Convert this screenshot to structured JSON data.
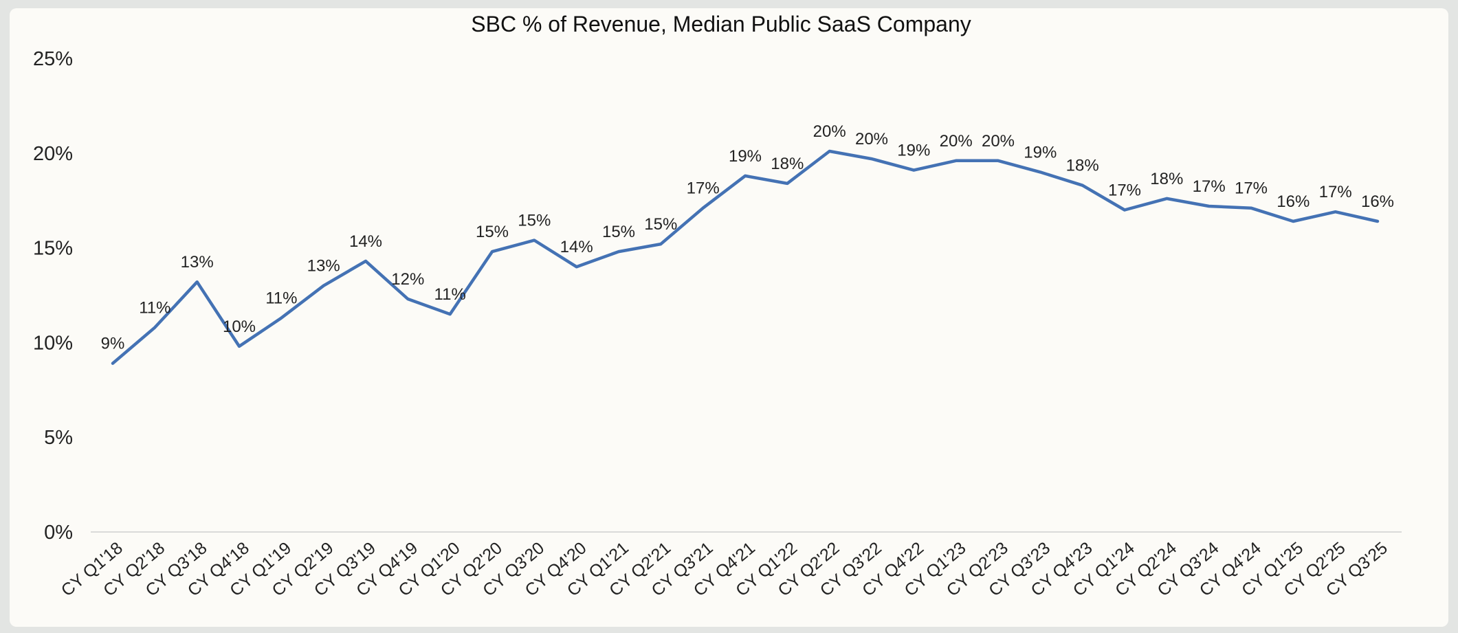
{
  "chart_data": {
    "type": "line",
    "title": "SBC % of Revenue, Median Public SaaS Company",
    "xlabel": "",
    "ylabel": "",
    "ylim": [
      0,
      25
    ],
    "yticks": [
      "0%",
      "5%",
      "10%",
      "15%",
      "20%",
      "25%"
    ],
    "grid": false,
    "legend": "none",
    "line_color": "#4472b4",
    "categories": [
      "CY Q1'18",
      "CY Q2'18",
      "CY Q3'18",
      "CY Q4'18",
      "CY Q1'19",
      "CY Q2'19",
      "CY Q3'19",
      "CY Q4'19",
      "CY Q1'20",
      "CY Q2'20",
      "CY Q3'20",
      "CY Q4'20",
      "CY Q1'21",
      "CY Q2'21",
      "CY Q3'21",
      "CY Q4'21",
      "CY Q1'22",
      "CY Q2'22",
      "CY Q3'22",
      "CY Q4'22",
      "CY Q1'23",
      "CY Q2'23",
      "CY Q3'23",
      "CY Q4'23",
      "CY Q1'24",
      "CY Q2'24",
      "CY Q3'24",
      "CY Q4'24",
      "CY Q1'25",
      "CY Q2'25",
      "CY Q3'25"
    ],
    "series": [
      {
        "values": [
          8.9,
          10.8,
          13.2,
          9.8,
          11.3,
          13.0,
          14.3,
          12.3,
          11.5,
          14.8,
          15.4,
          14.0,
          14.8,
          15.2,
          17.1,
          18.8,
          18.4,
          20.1,
          19.7,
          19.1,
          19.6,
          19.6,
          19.0,
          18.3,
          17.0,
          17.6,
          17.2,
          17.1,
          16.4,
          16.9,
          16.4
        ],
        "labels": [
          "9%",
          "11%",
          "13%",
          "10%",
          "11%",
          "13%",
          "14%",
          "12%",
          "11%",
          "15%",
          "15%",
          "14%",
          "15%",
          "15%",
          "17%",
          "19%",
          "18%",
          "20%",
          "20%",
          "19%",
          "20%",
          "20%",
          "19%",
          "18%",
          "17%",
          "18%",
          "17%",
          "17%",
          "16%",
          "17%",
          "16%"
        ]
      }
    ]
  }
}
